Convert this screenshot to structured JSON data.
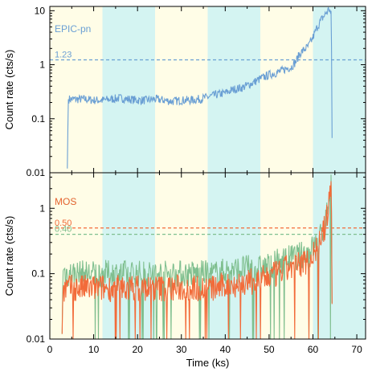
{
  "chart_data": [
    {
      "type": "line",
      "panel": "top",
      "scale": "log",
      "ylabel": "Count rate (cts/s)",
      "ylim": [
        0.01,
        12
      ],
      "yticks": [
        "0.01",
        "0.1",
        "1",
        "10"
      ],
      "ytick_values": [
        0.01,
        0.1,
        1,
        10
      ],
      "xlim": [
        0,
        72
      ],
      "bands": [
        {
          "from": 0,
          "to": 12,
          "color": "#fffde7"
        },
        {
          "from": 12,
          "to": 24,
          "color": "#d4f4f2"
        },
        {
          "from": 24,
          "to": 36,
          "color": "#fffde7"
        },
        {
          "from": 36,
          "to": 48,
          "color": "#d4f4f2"
        },
        {
          "from": 48,
          "to": 60,
          "color": "#fffde7"
        },
        {
          "from": 60,
          "to": 72,
          "color": "#d4f4f2"
        }
      ],
      "series": [
        {
          "name": "EPIC-pn",
          "color": "#6a9fd4",
          "x": [
            4.0,
            4.2,
            6,
            8,
            10,
            12,
            14,
            16,
            18,
            20,
            22,
            24,
            26,
            28,
            30,
            32,
            34,
            36,
            38,
            40,
            42,
            44,
            46,
            48,
            50,
            52,
            54,
            55,
            56,
            57,
            58,
            59,
            60,
            61,
            62,
            63,
            63.7,
            64.2,
            64.4
          ],
          "y": [
            0.012,
            0.23,
            0.23,
            0.23,
            0.22,
            0.22,
            0.23,
            0.24,
            0.23,
            0.22,
            0.22,
            0.23,
            0.22,
            0.21,
            0.22,
            0.22,
            0.23,
            0.25,
            0.28,
            0.3,
            0.35,
            0.38,
            0.45,
            0.55,
            0.65,
            0.72,
            0.85,
            0.9,
            1.1,
            1.6,
            1.9,
            2.2,
            3.2,
            5,
            7,
            9,
            11,
            8,
            0.012
          ]
        }
      ],
      "reference_lines": [
        {
          "value": 1.23,
          "label": "1.23",
          "color": "#6a9fd4"
        }
      ]
    },
    {
      "type": "line",
      "panel": "bottom",
      "scale": "log",
      "xlabel": "Time (ks)",
      "ylabel": "Count rate (cts/s)",
      "ylim": [
        0.01,
        3.5
      ],
      "yticks": [
        "0.01",
        "0.1",
        "1"
      ],
      "ytick_values": [
        0.01,
        0.1,
        1
      ],
      "xlim": [
        0,
        72
      ],
      "xticks": [
        "0",
        "10",
        "20",
        "30",
        "40",
        "50",
        "60",
        "70"
      ],
      "xtick_values": [
        0,
        10,
        20,
        30,
        40,
        50,
        60,
        70
      ],
      "series": [
        {
          "name": "MOS",
          "color": "#7fbf8f",
          "x": [
            2.8,
            3.0,
            4,
            6,
            8,
            10,
            12,
            14,
            16,
            18,
            20,
            22,
            24,
            26,
            28,
            30,
            32,
            34,
            36,
            38,
            40,
            42,
            44,
            46,
            48,
            50,
            52,
            54,
            56,
            58,
            59,
            60,
            61,
            62,
            63,
            63.7,
            64.2,
            64.4
          ],
          "y": [
            0.012,
            0.11,
            0.1,
            0.1,
            0.1,
            0.1,
            0.1,
            0.1,
            0.1,
            0.1,
            0.1,
            0.1,
            0.1,
            0.1,
            0.1,
            0.1,
            0.1,
            0.1,
            0.1,
            0.1,
            0.11,
            0.11,
            0.12,
            0.12,
            0.12,
            0.13,
            0.15,
            0.17,
            0.18,
            0.2,
            0.22,
            0.25,
            0.3,
            0.4,
            0.7,
            1.5,
            2.8,
            0.012
          ]
        },
        {
          "name": "MOS",
          "color": "#f26b3a",
          "x": [
            2.8,
            3.0,
            4,
            6,
            8,
            10,
            12,
            14,
            16,
            18,
            20,
            22,
            24,
            26,
            28,
            30,
            32,
            34,
            36,
            38,
            40,
            42,
            44,
            46,
            48,
            50,
            52,
            54,
            56,
            58,
            59,
            60,
            61,
            62,
            63,
            63.7,
            64.2,
            64.4
          ],
          "y": [
            0.012,
            0.06,
            0.06,
            0.06,
            0.06,
            0.06,
            0.06,
            0.06,
            0.06,
            0.06,
            0.06,
            0.06,
            0.06,
            0.06,
            0.06,
            0.06,
            0.06,
            0.06,
            0.06,
            0.06,
            0.065,
            0.07,
            0.07,
            0.075,
            0.08,
            0.09,
            0.1,
            0.12,
            0.13,
            0.15,
            0.17,
            0.2,
            0.25,
            0.35,
            0.6,
            1.3,
            2.3,
            0.012
          ]
        }
      ],
      "reference_lines": [
        {
          "value": 0.5,
          "label": "0.50",
          "color": "#f26b3a"
        },
        {
          "value": 0.4,
          "label": "0.40",
          "color": "#7fbf8f"
        }
      ]
    }
  ]
}
